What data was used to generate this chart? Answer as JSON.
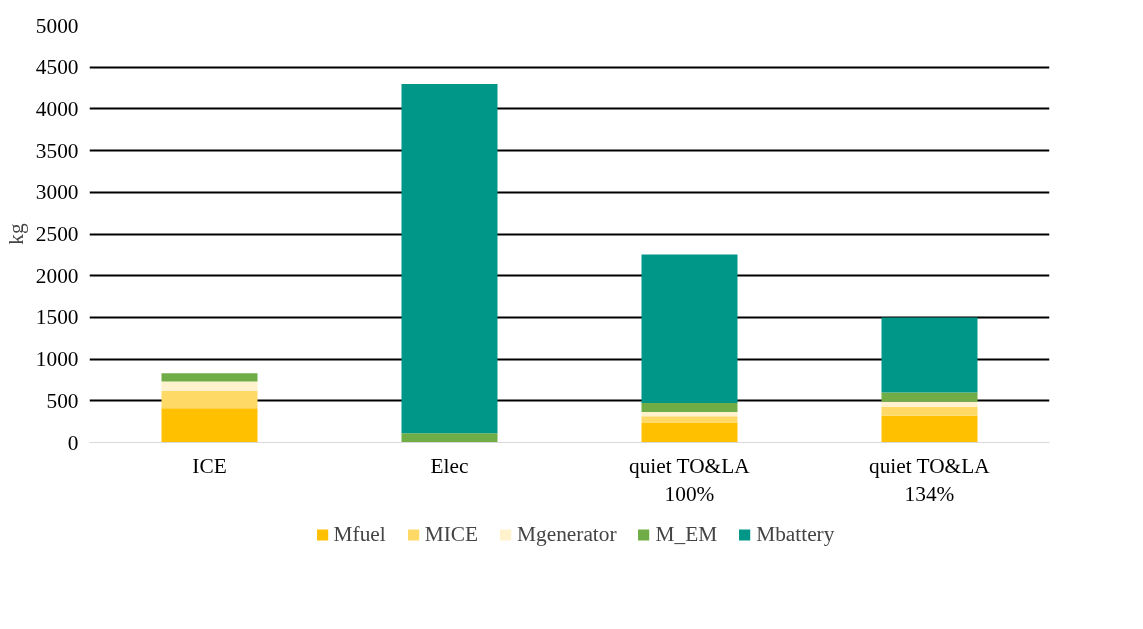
{
  "chart_data": {
    "type": "bar",
    "stacked": true,
    "ylabel": "kg",
    "categories": [
      "ICE",
      "Elec",
      "quiet TO&LA\n100%",
      "quiet TO&LA\n134%"
    ],
    "series": [
      {
        "name": "Mfuel",
        "color": "#ffc000",
        "values": [
          410,
          0,
          240,
          320
        ]
      },
      {
        "name": "MICE",
        "color": "#ffd966",
        "values": [
          210,
          0,
          75,
          110
        ]
      },
      {
        "name": "Mgenerator",
        "color": "#fff2cc",
        "values": [
          110,
          0,
          50,
          60
        ]
      },
      {
        "name": "M_EM",
        "color": "#70ad47",
        "values": [
          100,
          110,
          110,
          110
        ]
      },
      {
        "name": "Mbattery",
        "color": "#009688",
        "values": [
          0,
          4190,
          1780,
          900
        ]
      }
    ],
    "ylim": [
      0,
      5000
    ],
    "yticks": [
      0,
      500,
      1000,
      1500,
      2000,
      2500,
      3000,
      3500,
      4000,
      4500,
      5000
    ],
    "grid": "y",
    "legend": "bottom"
  }
}
